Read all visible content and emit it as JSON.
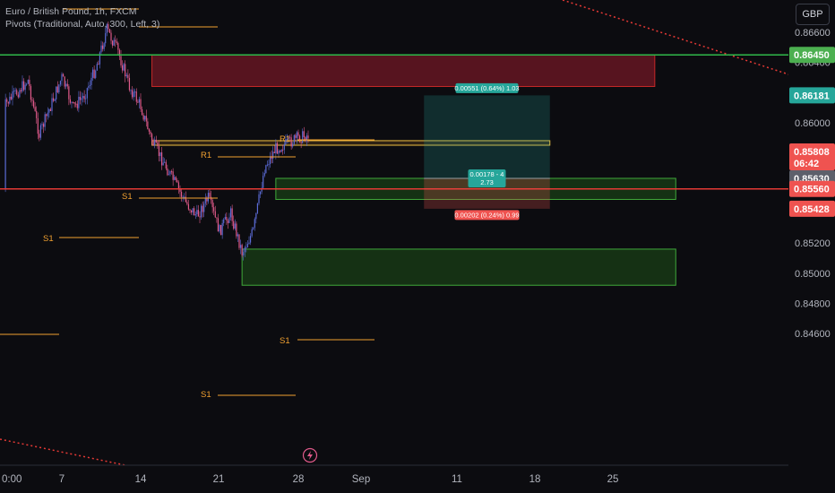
{
  "legend": {
    "symbol_line": "Euro / British Pound, 1h, FXCM",
    "indicator_line": "Pivots (Traditional, Auto, 300, Left, 3)"
  },
  "currency_button": "GBP",
  "colors": {
    "background": "#0c0c10",
    "bull": "#5b6bd6",
    "bear": "#e05a8a",
    "pivot": "#f0a030",
    "green_line": "#2fb84a",
    "red_line": "#e53935",
    "teal": "#26a69a",
    "red_badge": "#ef5350",
    "grey_badge": "#5d606b",
    "green_badge": "#4caf50"
  },
  "price_axis": {
    "ticks": [
      "0.86600",
      "0.86400",
      "0.86200",
      "0.86000",
      "0.85800",
      "0.85600",
      "0.85400",
      "0.85200",
      "0.85000",
      "0.84800",
      "0.84600"
    ]
  },
  "time_axis": {
    "labels": [
      "0:00",
      "7",
      "14",
      "21",
      "28",
      "Sep",
      "11",
      "18",
      "25"
    ]
  },
  "price_badges": [
    {
      "label": "0.86450",
      "color": "#4caf50"
    },
    {
      "label": "0.86181",
      "color": "#26a69a"
    },
    {
      "label": "0.85808",
      "sub": "06:42",
      "color": "#ef5350"
    },
    {
      "label": "0.85630",
      "color": "#5d606b"
    },
    {
      "label": "0.85560",
      "color": "#ef5350"
    },
    {
      "label": "0.85428",
      "color": "#ef5350"
    }
  ],
  "pivot_labels": [
    "R1",
    "R1",
    "S1",
    "S1",
    "S1",
    "S1"
  ],
  "position_tool": {
    "target_label": "0.00551 (0.64%) 1.03",
    "stop_label": "0.00202 (0.24%) 0.99",
    "center_label_line1": "0.00178 - 4",
    "center_label_line2": "2.73"
  },
  "chart_data": {
    "type": "candlestick",
    "symbol": "Euro / British Pound",
    "timeframe": "1h",
    "ylim": [
      0.846,
      0.8668
    ],
    "x_labels": [
      "0:00",
      "7",
      "14",
      "21",
      "28",
      "Sep",
      "11",
      "18",
      "25"
    ],
    "close_path": [
      {
        "x": "0:00",
        "y": 0.8556
      },
      {
        "x": "Aug 2",
        "y": 0.8612
      },
      {
        "x": "Aug 4",
        "y": 0.8628
      },
      {
        "x": "Aug 5",
        "y": 0.8592
      },
      {
        "x": "Aug 7",
        "y": 0.863
      },
      {
        "x": "Aug 8",
        "y": 0.861
      },
      {
        "x": "Aug 9",
        "y": 0.8618
      },
      {
        "x": "Aug 10",
        "y": 0.8636
      },
      {
        "x": "Aug 11",
        "y": 0.8662
      },
      {
        "x": "Aug 12",
        "y": 0.8647
      },
      {
        "x": "Aug 13",
        "y": 0.8624
      },
      {
        "x": "Aug 14",
        "y": 0.8611
      },
      {
        "x": "Aug 15",
        "y": 0.8588
      },
      {
        "x": "Aug 16",
        "y": 0.8574
      },
      {
        "x": "Aug 18",
        "y": 0.8547
      },
      {
        "x": "Aug 19",
        "y": 0.8538
      },
      {
        "x": "Aug 20",
        "y": 0.855
      },
      {
        "x": "Aug 21",
        "y": 0.8528
      },
      {
        "x": "Aug 22",
        "y": 0.854
      },
      {
        "x": "Aug 23",
        "y": 0.8514
      },
      {
        "x": "Aug 24",
        "y": 0.8528
      },
      {
        "x": "Aug 25",
        "y": 0.857
      },
      {
        "x": "Aug 26",
        "y": 0.8583
      },
      {
        "x": "Aug 27",
        "y": 0.8586
      },
      {
        "x": "Aug 28",
        "y": 0.859
      },
      {
        "x": "Aug 29",
        "y": 0.8592
      }
    ],
    "horizontal_lines": [
      {
        "name": "resistance",
        "price": 0.8645,
        "color": "#2fb84a"
      },
      {
        "name": "support",
        "price": 0.8556,
        "color": "#e53935"
      }
    ],
    "zones": [
      {
        "name": "supply-zone",
        "from": "Aug 15",
        "to": "Sep 29",
        "top": 0.8645,
        "bottom": 0.8624
      },
      {
        "name": "demand-zone-1",
        "from": "Aug 26",
        "to": "Oct 1",
        "top": 0.8563,
        "bottom": 0.8549
      },
      {
        "name": "demand-zone-2",
        "from": "Aug 23",
        "to": "Oct 1",
        "top": 0.8516,
        "bottom": 0.8492
      },
      {
        "name": "highlight-band",
        "from": "Aug 15",
        "to": "Sep 19",
        "top": 0.8588,
        "bottom": 0.8585
      }
    ],
    "position": {
      "entry": 0.8563,
      "target": 0.86181,
      "stop": 0.85428,
      "from": "Sep 7",
      "to": "Sep 19"
    },
    "pivots": [
      {
        "label": "R1",
        "price": 0.8612
      },
      {
        "label": "R1",
        "price": 0.86015
      },
      {
        "label": "S1",
        "price": 0.8586
      },
      {
        "label": "S1",
        "price": 0.8566
      },
      {
        "label": "S1",
        "price": 0.852
      },
      {
        "label": "S1",
        "price": 0.8495
      }
    ]
  }
}
